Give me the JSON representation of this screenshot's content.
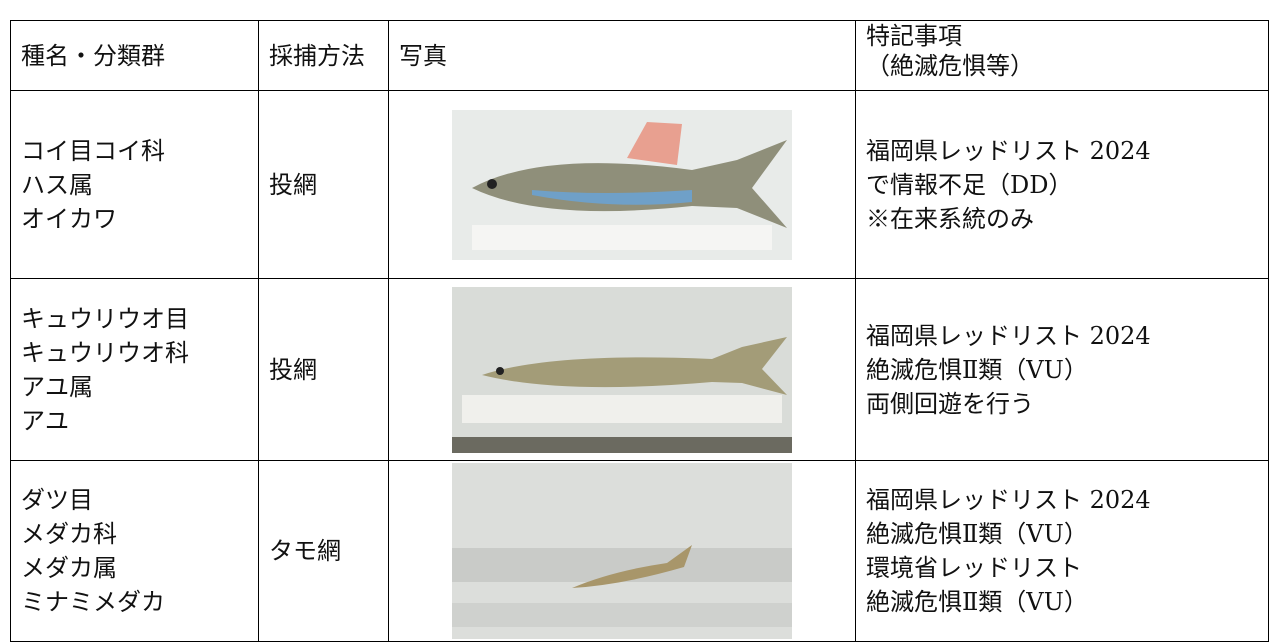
{
  "table": {
    "header": {
      "species": "種名・分類群",
      "method": "採捕方法",
      "photo": "写真",
      "notes": [
        "特記事項",
        "（絶滅危惧等）"
      ]
    },
    "rows": [
      {
        "species": [
          "コイ目コイ科",
          "ハス属",
          "オイカワ"
        ],
        "method": "投網",
        "notes": [
          "福岡県レッドリスト 2024",
          "で情報不足（DD）",
          "※在来系統のみ"
        ]
      },
      {
        "species": [
          "キュウリウオ目",
          "キュウリウオ科",
          "アユ属",
          "アユ"
        ],
        "method": "投網",
        "notes": [
          "福岡県レッドリスト 2024",
          "絶滅危惧Ⅱ類（VU）",
          "両側回遊を行う"
        ]
      },
      {
        "species": [
          "ダツ目",
          "メダカ科",
          "メダカ属",
          "ミナミメダカ"
        ],
        "method": "タモ網",
        "notes": [
          "福岡県レッドリスト 2024",
          "絶滅危惧Ⅱ類（VU）",
          "環境省レッドリスト",
          "絶滅危惧Ⅱ類（VU）"
        ]
      }
    ]
  }
}
